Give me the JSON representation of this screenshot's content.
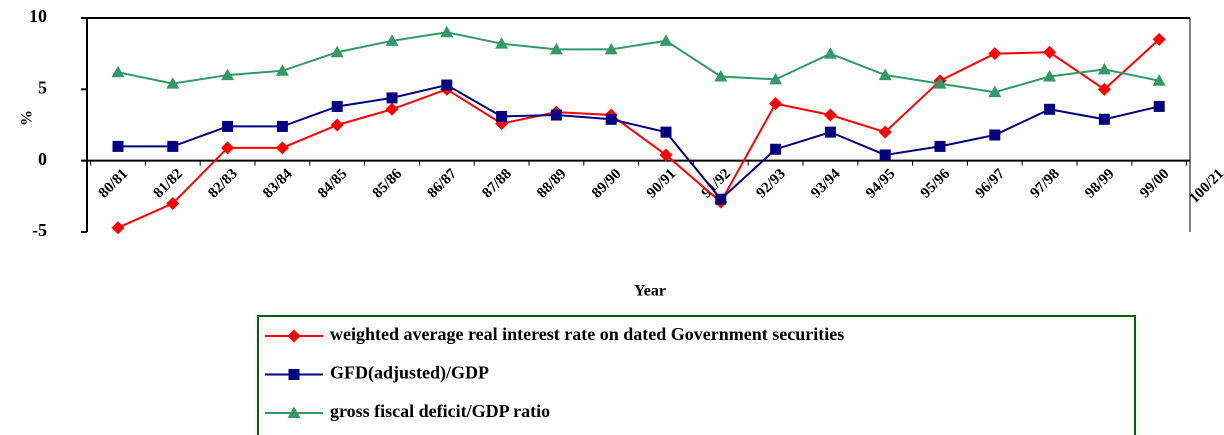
{
  "chart_data": {
    "type": "line",
    "x_label": "Year",
    "y_label": "%",
    "categories": [
      "80/81",
      "81/82",
      "82/83",
      "83/84",
      "84/85",
      "85/86",
      "86/87",
      "87/88",
      "88/89",
      "89/90",
      "90/91",
      "91/92",
      "92/93",
      "93/94",
      "94/95",
      "95/96",
      "96/97",
      "97/98",
      "98/99",
      "99/00",
      "100/21"
    ],
    "series": [
      {
        "name": "weighted average real interest rate on dated Government securities",
        "color": "#ff0000",
        "marker": "diamond",
        "values": [
          -4.7,
          -3.0,
          0.9,
          0.9,
          2.5,
          3.6,
          5.0,
          2.6,
          3.4,
          3.2,
          0.4,
          -2.9,
          4.0,
          3.2,
          2.0,
          5.6,
          7.5,
          7.6,
          5.0,
          8.5,
          null
        ]
      },
      {
        "name": "GFD(adjusted)/GDP",
        "color": "#000080",
        "marker": "square",
        "values": [
          1.0,
          1.0,
          2.4,
          2.4,
          3.8,
          4.4,
          5.3,
          3.1,
          3.2,
          2.9,
          2.0,
          -2.7,
          0.8,
          2.0,
          0.4,
          1.0,
          1.8,
          3.6,
          2.9,
          3.8,
          null
        ]
      },
      {
        "name": "gross fiscal deficit/GDP ratio",
        "color": "#339966",
        "marker": "triangle",
        "values": [
          6.2,
          5.4,
          6.0,
          6.3,
          7.6,
          8.4,
          9.0,
          8.2,
          7.8,
          7.8,
          8.4,
          5.9,
          5.7,
          7.5,
          6.0,
          5.4,
          4.8,
          5.9,
          6.4,
          5.6,
          null
        ]
      }
    ],
    "ylim": [
      -5,
      10
    ],
    "yticks": [
      -5,
      0,
      5,
      10
    ],
    "legend": "bottom"
  }
}
